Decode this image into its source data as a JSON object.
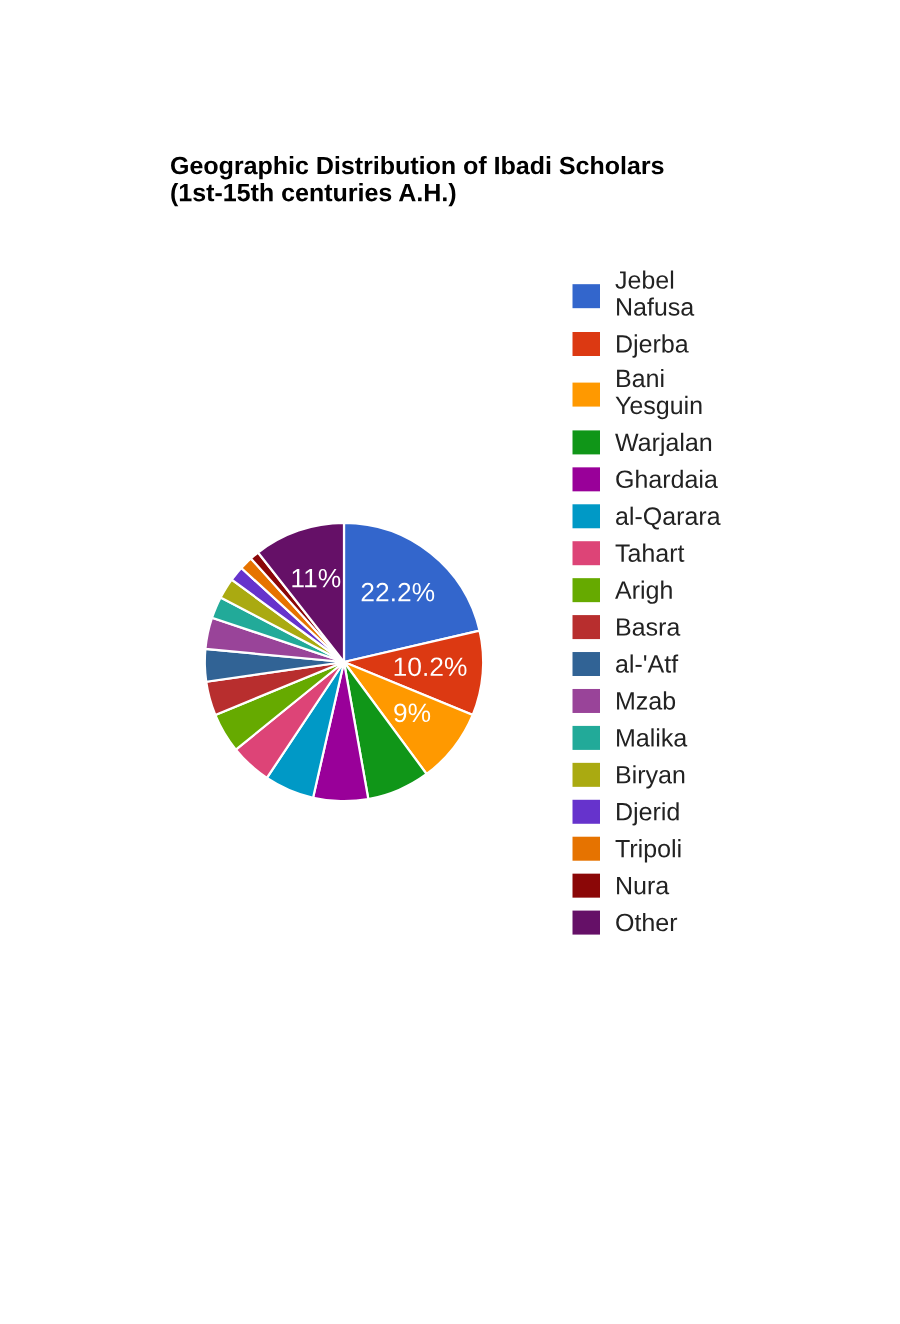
{
  "chart_data": {
    "type": "pie",
    "title": "Geographic Distribution of Ibadi Scholars\n(1st-15th centuries A.H.)",
    "categories": [
      "Jebel Nafusa",
      "Djerba",
      "Bani Yesguin",
      "Warjalan",
      "Ghardaia",
      "al-Qarara",
      "Tahart",
      "Arigh",
      "Basra",
      "al-'Atf",
      "Mzab",
      "Malika",
      "Biryan",
      "Djerid",
      "Tripoli",
      "Nura",
      "Other"
    ],
    "values": [
      22.2,
      10.2,
      9,
      7.6,
      6.6,
      6.0,
      5.0,
      4.8,
      4.1,
      3.9,
      3.8,
      2.6,
      2.5,
      1.8,
      1.6,
      1.1,
      11
    ],
    "value_labels": [
      "22.2%",
      "10.2%",
      "9%",
      null,
      null,
      null,
      null,
      null,
      null,
      null,
      null,
      null,
      null,
      null,
      null,
      null,
      "11%"
    ],
    "colors": [
      "#3366cc",
      "#dc3912",
      "#ff9900",
      "#109618",
      "#990099",
      "#0099c6",
      "#dd4477",
      "#66aa00",
      "#b82e2e",
      "#316395",
      "#994499",
      "#22aa99",
      "#aaaa11",
      "#6633cc",
      "#e67300",
      "#8b0707",
      "#651067"
    ],
    "legend": "right"
  }
}
